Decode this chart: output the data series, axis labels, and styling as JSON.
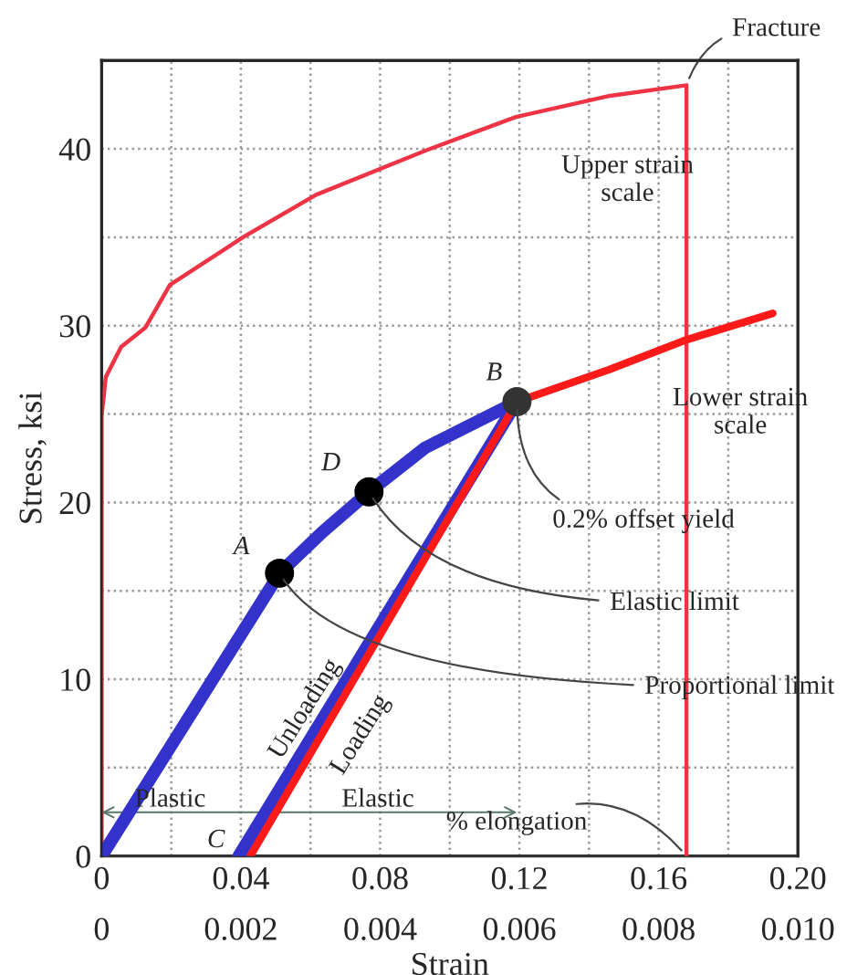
{
  "chart_data": {
    "type": "line",
    "xlabel": "Strain",
    "ylabel": "Stress, ksi",
    "xlim": [
      0,
      0.2
    ],
    "ylim": [
      0,
      45
    ],
    "xticks": [
      0,
      {
        "value": 0.02,
        "label": null
      },
      0.04,
      {
        "value": 0.06,
        "label": null
      },
      0.08,
      {
        "value": 0.1,
        "label": null
      },
      0.12,
      {
        "value": 0.14,
        "label": null
      },
      0.16,
      {
        "value": 0.18,
        "label": null
      },
      {
        "value": 0.2,
        "label": "0.20"
      }
    ],
    "x2lim": [
      0,
      0.01
    ],
    "x2ticks": [
      0,
      0.002,
      0.004,
      0.006,
      0.008,
      {
        "value": 0.01,
        "label": "0.010"
      }
    ],
    "yticks": [
      0,
      {
        "value": 5,
        "label": null
      },
      10,
      {
        "value": 15,
        "label": null
      },
      20,
      {
        "value": 25,
        "label": null
      },
      30,
      {
        "value": 35,
        "label": null
      },
      40
    ],
    "grid": true,
    "marker": "none",
    "line_style": "solid",
    "series": [
      {
        "color": "#ee3344",
        "x": [
          0,
          0,
          0.0012,
          0.0056,
          0.0126,
          0.0196,
          0.0406,
          0.0616,
          0.093,
          0.119,
          0.146,
          0.168,
          0.168
        ],
        "values": [
          0,
          24.9,
          27.1,
          28.8,
          29.9,
          32.3,
          35.0,
          37.4,
          39.9,
          41.8,
          43.0,
          43.6,
          0
        ]
      },
      {
        "color": "#3333cc",
        "x": [
          0,
          0.0511,
          0.0633,
          0.0768,
          0.093,
          0.1193
        ],
        "values": [
          0,
          16.0,
          18.3,
          20.6,
          23.1,
          25.7
        ]
      },
      {
        "color": "#ff1a1a",
        "x": [
          0.1193,
          0.1456,
          0.168,
          0.1928
        ],
        "values": [
          25.7,
          27.5,
          29.2,
          30.7
        ]
      },
      {
        "color": "#3333cc",
        "x": [
          0.1193,
          0.0394
        ],
        "values": [
          25.7,
          0
        ]
      },
      {
        "color": "#ff1a1a",
        "x": [
          0.0427,
          0.1193
        ],
        "values": [
          0,
          25.7
        ]
      },
      {
        "type": "scatter",
        "marker": "circle",
        "colors": [
          "#000000",
          "#000000",
          "#333333"
        ],
        "x": [
          0.0511,
          0.0768,
          0.1193
        ],
        "values": [
          16.0,
          20.6,
          25.7
        ]
      }
    ],
    "annotations": [
      {
        "text": "Fracture",
        "x": 0.168,
        "y": 43.6
      },
      {
        "text": "Upper strain\nscale",
        "x": 0.119,
        "y": 41.8
      },
      {
        "text": "Lower strain\nscale",
        "x": 0.1456,
        "y": 27.5
      },
      {
        "text": "B",
        "x": 0.1193,
        "y": 25.7
      },
      {
        "text": "0.2% offset yield",
        "x": 0.1193,
        "y": 25.7
      },
      {
        "text": "D",
        "x": 0.0768,
        "y": 20.6
      },
      {
        "text": "Elastic limit",
        "x": 0.0768,
        "y": 20.6
      },
      {
        "text": "A",
        "x": 0.0511,
        "y": 16.0
      },
      {
        "text": "Proportional limit",
        "x": 0.0511,
        "y": 16.0
      },
      {
        "text": "C",
        "x": 0.0394,
        "y": 0
      },
      {
        "text": "Unloading",
        "x": 0.068,
        "y": 8.3
      },
      "Loading",
      "Plastic",
      "Elastic",
      {
        "text": "% elongation",
        "x": 0.168,
        "y": 0
      }
    ]
  }
}
